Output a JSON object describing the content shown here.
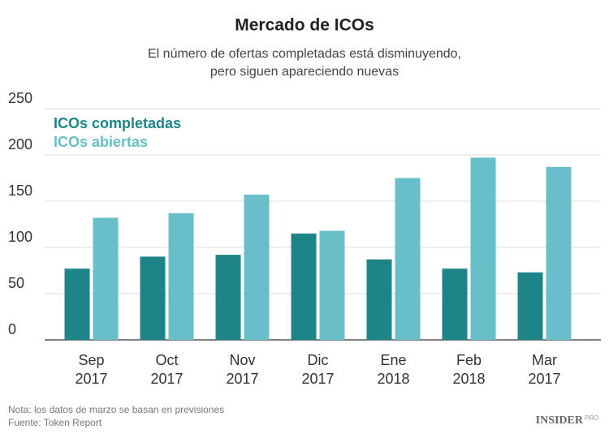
{
  "chart_data": {
    "type": "bar",
    "title": "Mercado de ICOs",
    "subtitle": [
      "El número de ofertas completadas está disminuyendo,",
      "pero siguen apareciendo nuevas"
    ],
    "categories": [
      "Sep 2017",
      "Oct 2017",
      "Nov 2017",
      "Dic 2017",
      "Ene 2018",
      "Feb 2018",
      "Mar 2017"
    ],
    "series": [
      {
        "name": "ICOs completadas",
        "color": "#1d8488",
        "values": [
          77,
          90,
          92,
          115,
          87,
          77,
          73
        ]
      },
      {
        "name": "ICOs abiertas",
        "color": "#68bfc9",
        "values": [
          132,
          137,
          157,
          118,
          175,
          197,
          187
        ]
      }
    ],
    "ylim": [
      0,
      250
    ],
    "yticks": [
      0,
      50,
      100,
      150,
      200,
      250
    ],
    "grid": true,
    "legend": "top-left",
    "notes": [
      "Nota: los datos de marzo se basan en previsiones",
      "Fuente: Token Report"
    ],
    "logo": {
      "main": "INSIDER",
      "sub": "PRO"
    }
  }
}
